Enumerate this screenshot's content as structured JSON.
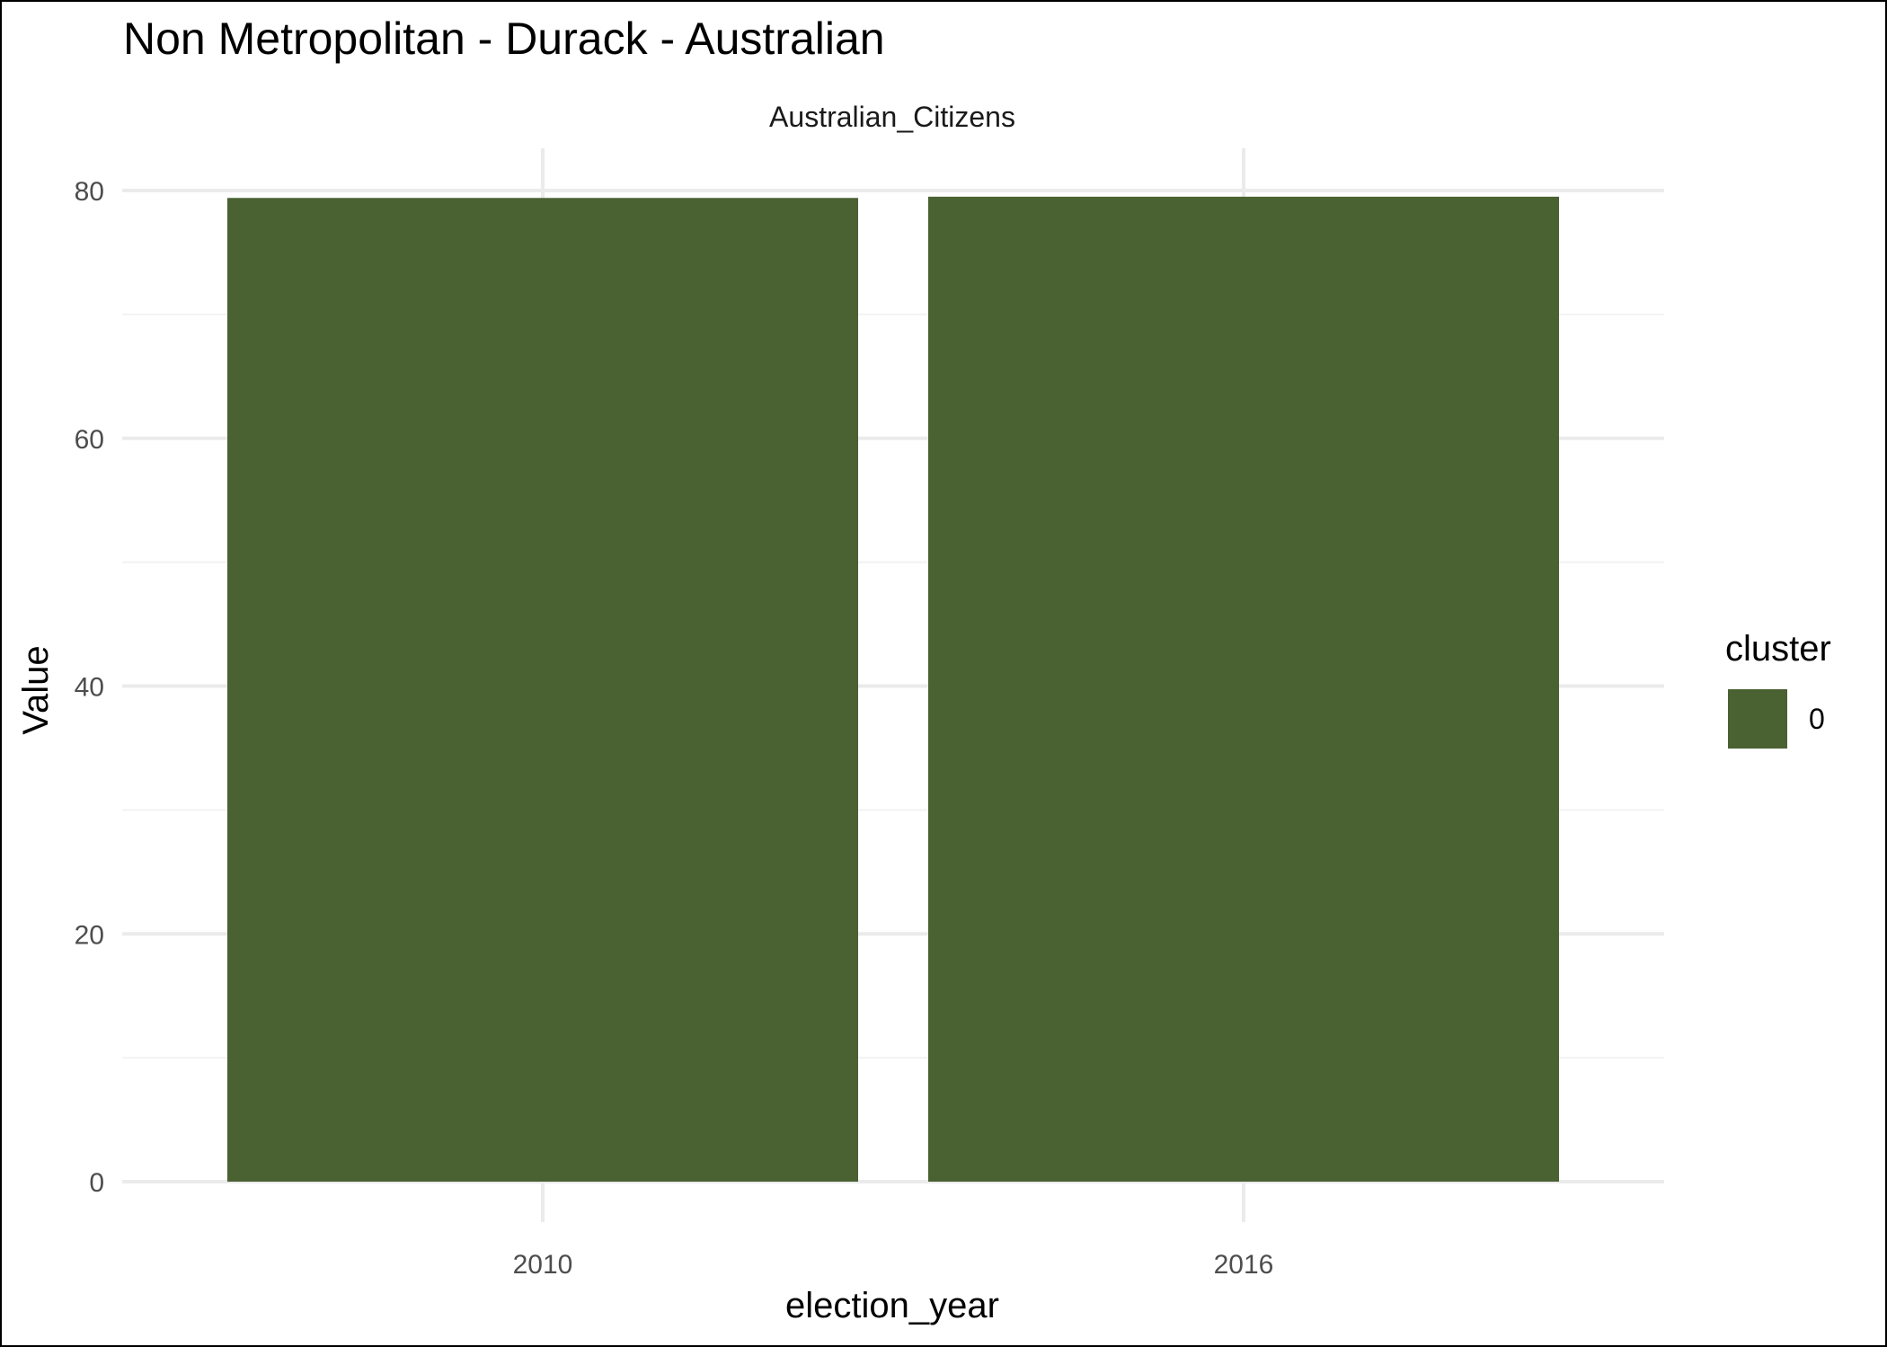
{
  "chart_data": {
    "type": "bar",
    "title": "Non Metropolitan - Durack - Australian",
    "facet_label": "Australian_Citizens",
    "xlabel": "election_year",
    "ylabel": "Value",
    "categories": [
      "2010",
      "2016"
    ],
    "series": [
      {
        "name": "0",
        "values": [
          79.4,
          79.5
        ]
      }
    ],
    "ylim": [
      0,
      80
    ],
    "yticks": [
      0,
      20,
      40,
      60,
      80
    ],
    "grid": true,
    "legend": {
      "title": "cluster",
      "position": "right",
      "entries": [
        "0"
      ]
    },
    "colors": {
      "bar": "#4a6132",
      "grid_major": "#ebebeb",
      "grid_minor": "#f2f2f2",
      "tick_text": "#4d4d4d"
    }
  }
}
